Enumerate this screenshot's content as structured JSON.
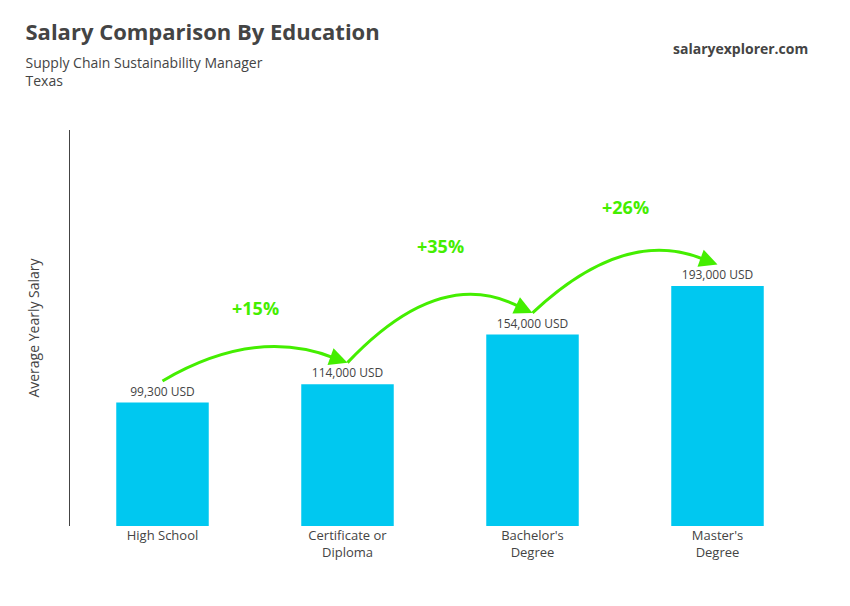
{
  "chart_data": {
    "type": "bar",
    "title": "Salary Comparison By Education",
    "subtitle": [
      "Supply Chain Sustainability Manager",
      "Texas"
    ],
    "ylabel": "Average Yearly Salary",
    "categories": [
      "High School",
      "Certificate or\nDiploma",
      "Bachelor's\nDegree",
      "Master's\nDegree"
    ],
    "values": [
      99300,
      114000,
      154000,
      193000
    ],
    "value_labels": [
      "99,300 USD",
      "114,000 USD",
      "154,000 USD",
      "193,000 USD"
    ],
    "data_labels": true,
    "color": "#00c8f0",
    "ylim": [
      0,
      318450
    ],
    "tick_labels": "x",
    "grid": false,
    "annotations": [
      {
        "text": "+15%",
        "from": 0,
        "to": 1,
        "color": "#44ee00"
      },
      {
        "text": "+35%",
        "from": 1,
        "to": 2,
        "color": "#44ee00"
      },
      {
        "text": "+26%",
        "from": 2,
        "to": 3,
        "color": "#44ee00"
      },
      {
        "text": "salaryexplorer.com"
      }
    ]
  }
}
